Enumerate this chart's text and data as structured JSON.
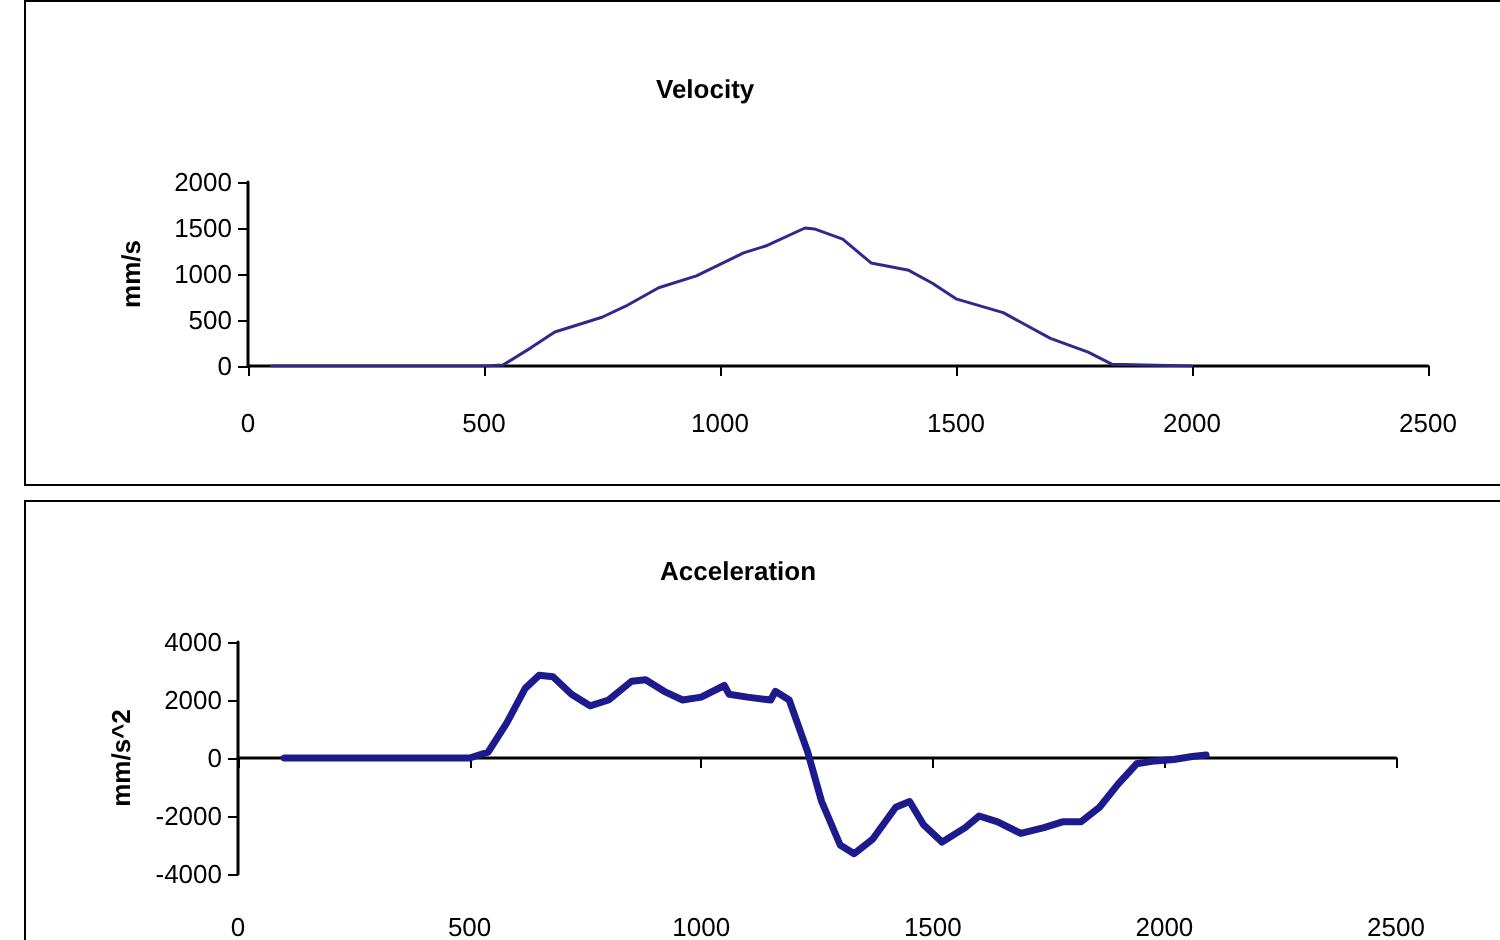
{
  "chart_data": [
    {
      "type": "line",
      "title": "Velocity",
      "ylabel": "mm/s",
      "marker": "none",
      "xlim": [
        0,
        2500
      ],
      "xticks": [
        0,
        500,
        1000,
        1500,
        2000,
        2500
      ],
      "ylim": [
        0,
        2000
      ],
      "yticks": [
        0,
        500,
        1000,
        1500,
        2000
      ],
      "series": [
        {
          "color": "#2e2a8a",
          "x": [
            50,
            500,
            540,
            600,
            650,
            750,
            800,
            870,
            950,
            1050,
            1100,
            1180,
            1200,
            1260,
            1320,
            1400,
            1450,
            1500,
            1600,
            1700,
            1780,
            1830,
            1900,
            2000
          ],
          "values": [
            0,
            0,
            10,
            200,
            370,
            530,
            650,
            850,
            980,
            1230,
            1310,
            1500,
            1490,
            1380,
            1120,
            1040,
            900,
            730,
            580,
            300,
            150,
            20,
            10,
            0
          ]
        }
      ]
    },
    {
      "type": "line",
      "title": "Acceleration",
      "ylabel": "mm/s^2",
      "marker": "none",
      "xlim": [
        0,
        2500
      ],
      "xticks": [
        0,
        500,
        1000,
        1500,
        2000,
        2500
      ],
      "ylim": [
        -4000,
        4000
      ],
      "yticks": [
        -4000,
        -2000,
        0,
        2000,
        4000
      ],
      "series": [
        {
          "color": "#1c1a8c",
          "x": [
            100,
            500,
            540,
            580,
            620,
            650,
            680,
            720,
            760,
            800,
            850,
            880,
            920,
            960,
            1000,
            1050,
            1060,
            1100,
            1150,
            1160,
            1190,
            1230,
            1260,
            1300,
            1330,
            1370,
            1420,
            1450,
            1480,
            1520,
            1570,
            1600,
            1640,
            1690,
            1740,
            1780,
            1820,
            1860,
            1900,
            1940,
            1980,
            2020,
            2060,
            2090
          ],
          "values": [
            0,
            0,
            200,
            1200,
            2400,
            2850,
            2800,
            2200,
            1800,
            2000,
            2650,
            2700,
            2300,
            2000,
            2100,
            2500,
            2200,
            2100,
            2000,
            2300,
            2000,
            200,
            -1500,
            -3000,
            -3300,
            -2800,
            -1700,
            -1500,
            -2300,
            -2900,
            -2400,
            -2000,
            -2200,
            -2600,
            -2400,
            -2200,
            -2200,
            -1700,
            -900,
            -200,
            -100,
            -50,
            50,
            100
          ]
        }
      ]
    }
  ]
}
